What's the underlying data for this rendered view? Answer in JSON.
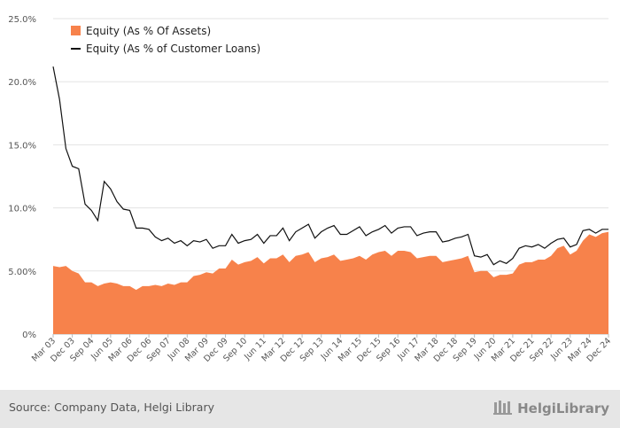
{
  "chart_data": {
    "type": "area+line",
    "title": "",
    "xlabel": "",
    "ylabel": "",
    "ylim": [
      0,
      25
    ],
    "y_ticks": [
      "0%",
      "5.00%",
      "10.0%",
      "15.0%",
      "20.0%",
      "25.0%"
    ],
    "x_tick_labels": [
      "Mar 03",
      "Dec 03",
      "Sep 04",
      "Jun 05",
      "Mar 06",
      "Dec 06",
      "Sep 07",
      "Jun 08",
      "Mar 09",
      "Dec 09",
      "Sep 10",
      "Jun 11",
      "Mar 12",
      "Dec 12",
      "Sep 13",
      "Jun 14",
      "Mar 15",
      "Dec 15",
      "Sep 16",
      "Jun 17",
      "Mar 18",
      "Dec 18",
      "Sep 19",
      "Jun 20",
      "Mar 21",
      "Dec 21",
      "Sep 22",
      "Jun 23",
      "Mar 24",
      "Dec 24"
    ],
    "legend_position": "top-left",
    "series": [
      {
        "name": "Equity (As % Of Assets)",
        "style": "area",
        "color": "#f7824b",
        "values": [
          5.4,
          5.3,
          5.4,
          5.0,
          4.8,
          4.1,
          4.1,
          3.8,
          4.0,
          4.1,
          4.0,
          3.8,
          3.8,
          3.5,
          3.8,
          3.8,
          3.9,
          3.8,
          4.0,
          3.9,
          4.1,
          4.1,
          4.6,
          4.7,
          4.9,
          4.8,
          5.2,
          5.2,
          5.9,
          5.5,
          5.7,
          5.8,
          6.1,
          5.6,
          6.0,
          6.0,
          6.3,
          5.7,
          6.2,
          6.3,
          6.5,
          5.7,
          6.0,
          6.1,
          6.3,
          5.8,
          5.9,
          6.0,
          6.2,
          5.9,
          6.3,
          6.5,
          6.6,
          6.2,
          6.6,
          6.6,
          6.5,
          6.0,
          6.1,
          6.2,
          6.2,
          5.7,
          5.8,
          5.9,
          6.0,
          6.2,
          4.9,
          5.0,
          5.0,
          4.5,
          4.7,
          4.7,
          4.8,
          5.5,
          5.7,
          5.7,
          5.9,
          5.9,
          6.2,
          6.8,
          7.0,
          6.3,
          6.6,
          7.4,
          7.9,
          7.7,
          8.0,
          8.1
        ]
      },
      {
        "name": "Equity (As % of Customer Loans)",
        "style": "line",
        "color": "#111111",
        "values": [
          21.2,
          18.6,
          14.7,
          13.3,
          13.1,
          10.3,
          9.8,
          9.0,
          12.1,
          11.5,
          10.5,
          9.9,
          9.8,
          8.4,
          8.4,
          8.3,
          7.7,
          7.4,
          7.6,
          7.2,
          7.4,
          7.0,
          7.4,
          7.3,
          7.5,
          6.8,
          7.0,
          7.0,
          7.9,
          7.2,
          7.4,
          7.5,
          7.9,
          7.2,
          7.8,
          7.8,
          8.4,
          7.4,
          8.1,
          8.4,
          8.7,
          7.6,
          8.1,
          8.4,
          8.6,
          7.9,
          7.9,
          8.2,
          8.5,
          7.8,
          8.1,
          8.3,
          8.6,
          8.0,
          8.4,
          8.5,
          8.5,
          7.8,
          8.0,
          8.1,
          8.1,
          7.3,
          7.4,
          7.6,
          7.7,
          7.9,
          6.2,
          6.1,
          6.3,
          5.5,
          5.8,
          5.6,
          6.0,
          6.8,
          7.0,
          6.9,
          7.1,
          6.8,
          7.2,
          7.5,
          7.6,
          6.9,
          7.1,
          8.2,
          8.3,
          8.0,
          8.3,
          8.3
        ]
      }
    ]
  },
  "footer": {
    "source": "Source: Company Data, Helgi Library",
    "brand": "HelgiLibrary"
  }
}
